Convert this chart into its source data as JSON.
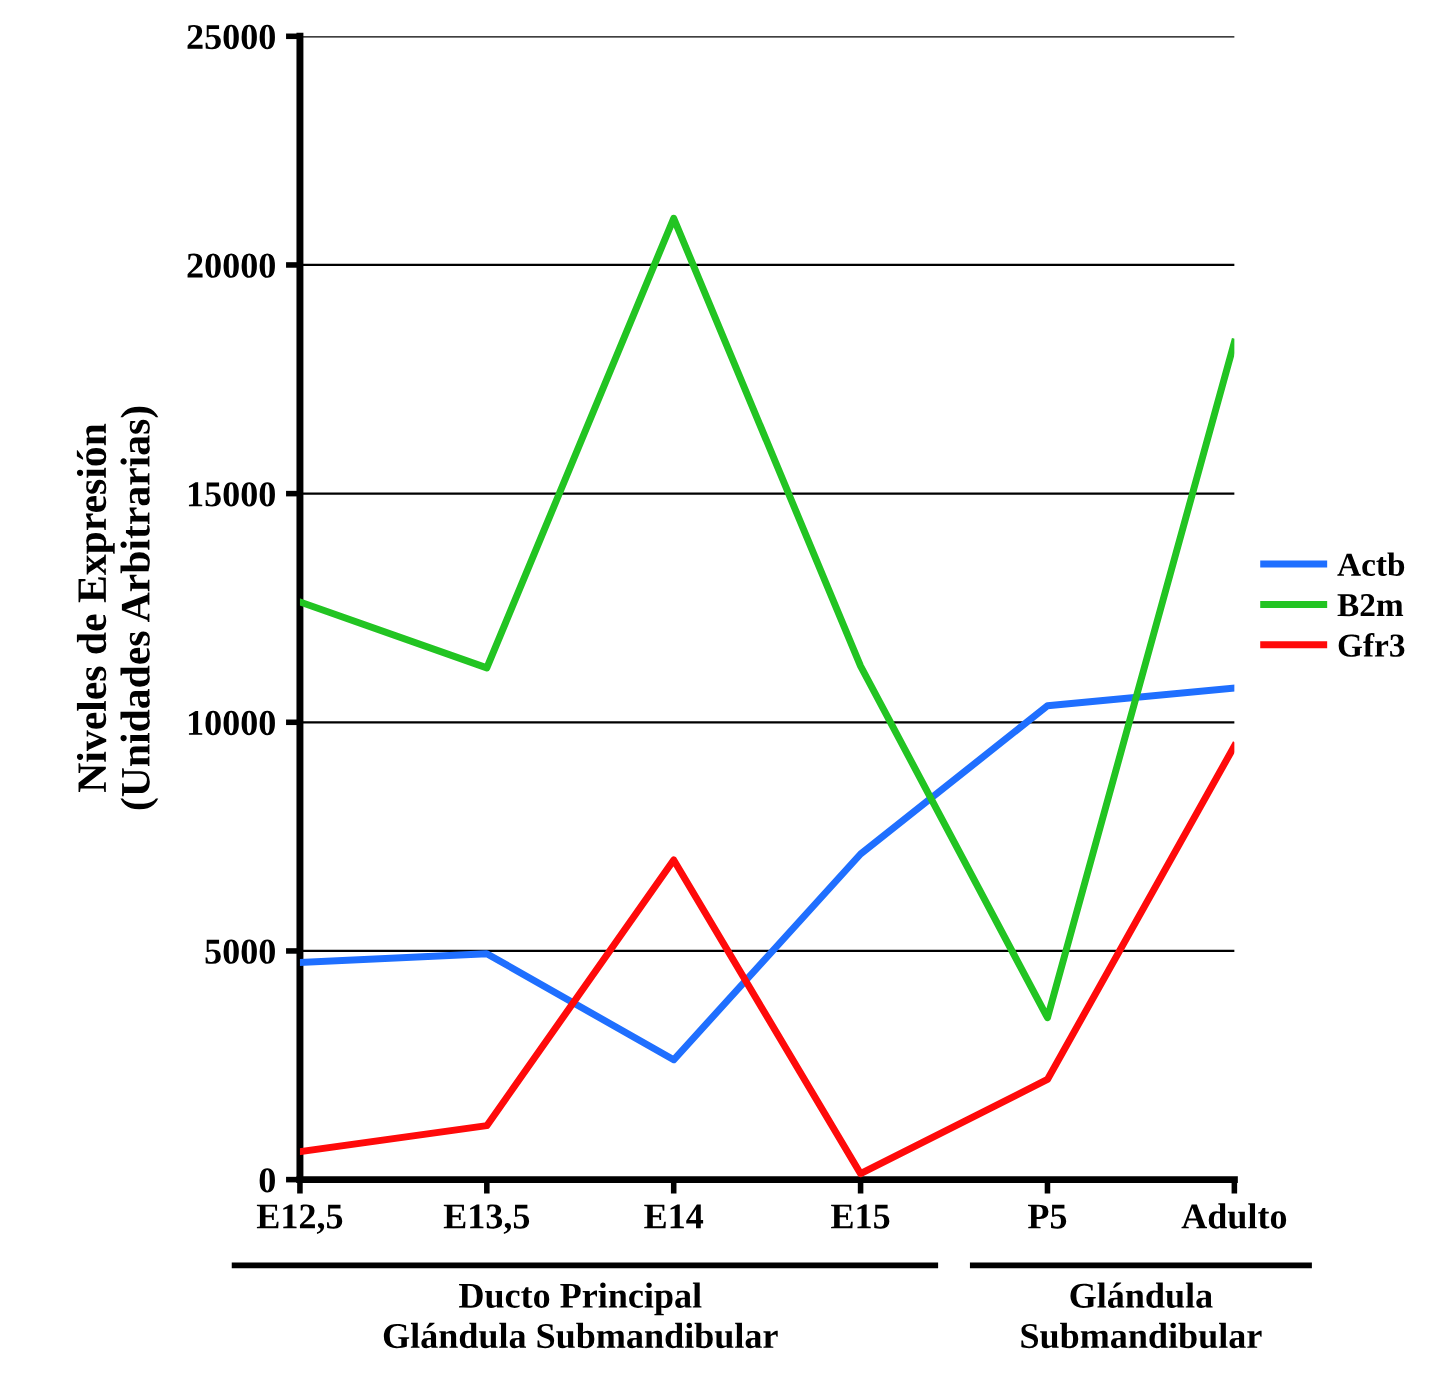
{
  "chart_data": {
    "type": "line",
    "ylabel": "Niveles de Expresión\n(Unidades Arbitrarias)",
    "categories": [
      "E12,5",
      "E13,5",
      "E14",
      "E15",
      "P5",
      "Adulto"
    ],
    "series": [
      {
        "name": "Actb",
        "color": "#1f6fff",
        "values": [
          4750,
          4940,
          2620,
          7120,
          10360,
          10750
        ]
      },
      {
        "name": "B2m",
        "color": "#22c422",
        "values": [
          12630,
          11190,
          21020,
          11230,
          3540,
          18310
        ]
      },
      {
        "name": "Gfr3",
        "color": "#ff0a0a",
        "values": [
          610,
          1180,
          6990,
          130,
          2190,
          9480
        ]
      }
    ],
    "ylim": [
      0,
      25000
    ],
    "yticks": [
      0,
      5000,
      10000,
      15000,
      20000,
      25000
    ],
    "grid": "y",
    "legend": "right",
    "marker": "none",
    "line_style": "solid",
    "annotations": [
      "Ducto Principal\nGlándula Submandibular",
      "Glándula\nSubmandibular"
    ]
  }
}
